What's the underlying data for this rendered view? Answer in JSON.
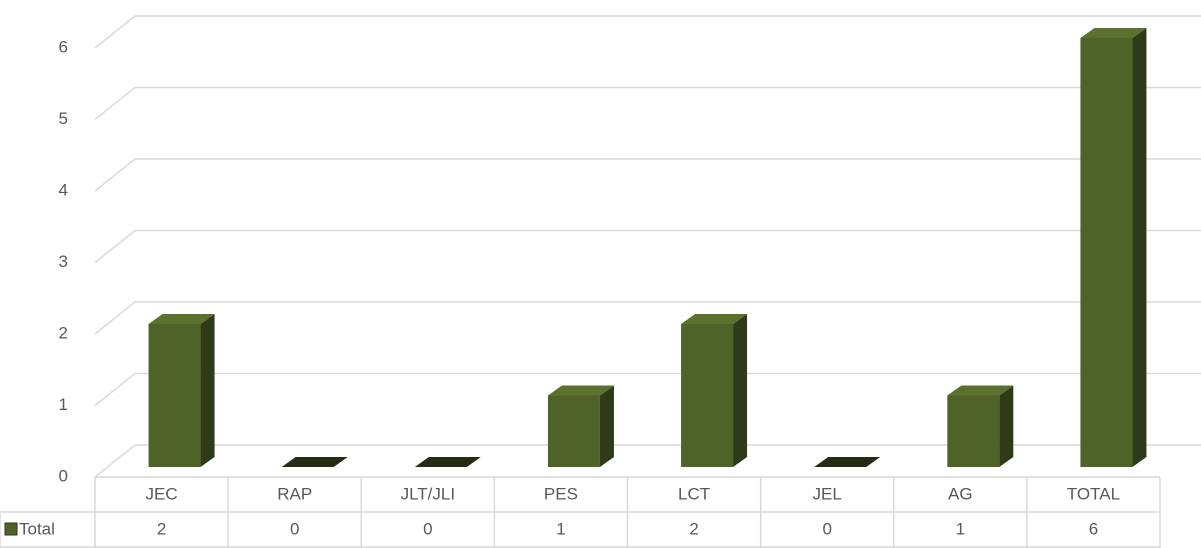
{
  "chart_data": {
    "type": "bar3d",
    "categories": [
      "JEC",
      "RAP",
      "JLT/JLI",
      "PES",
      "LCT",
      "JEL",
      "AG",
      "TOTAL"
    ],
    "series": [
      {
        "name": "Total",
        "color": "#4f6228",
        "values": [
          2,
          0,
          0,
          1,
          2,
          0,
          1,
          6
        ]
      }
    ],
    "ylim": [
      0,
      6
    ],
    "yticks": [
      0,
      1,
      2,
      3,
      4,
      5,
      6
    ],
    "grid": true,
    "data_table": true
  }
}
